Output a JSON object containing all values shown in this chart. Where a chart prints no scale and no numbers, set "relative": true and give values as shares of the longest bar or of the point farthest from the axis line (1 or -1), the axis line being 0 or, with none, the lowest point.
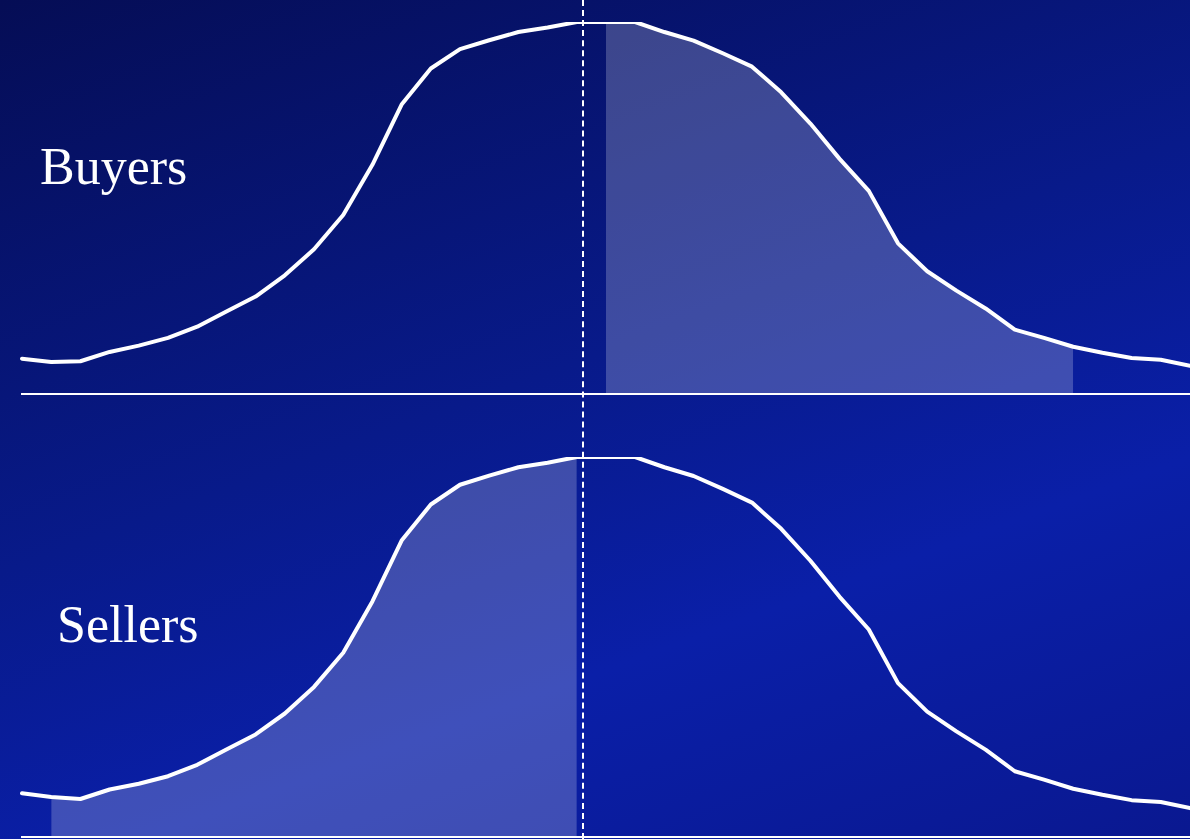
{
  "chart_data": [
    {
      "type": "line",
      "title": "Buyers",
      "relative": true,
      "tick_labels": false,
      "grid": false,
      "legend": false,
      "marker": "none",
      "line_style": "solid",
      "categories": [
        null,
        null,
        null,
        null,
        null,
        null,
        null,
        null,
        null,
        null,
        null,
        null,
        null,
        null,
        null,
        null,
        null,
        null,
        null,
        null,
        null,
        null,
        null,
        null,
        null,
        null,
        null,
        null,
        null,
        null,
        null,
        null,
        null,
        null,
        null,
        null,
        null,
        null,
        null,
        null,
        null
      ],
      "series": [
        {
          "color": "#ffffff",
          "values": [
            0.095,
            0.086,
            0.088,
            0.113,
            0.13,
            0.151,
            0.181,
            0.222,
            0.262,
            0.319,
            0.389,
            0.481,
            0.616,
            0.778,
            0.875,
            0.927,
            0.951,
            0.973,
            0.985,
            1,
            1,
            1,
            0.973,
            0.95,
            0.916,
            0.88,
            0.811,
            0.727,
            0.632,
            0.546,
            0.405,
            0.33,
            0.278,
            0.23,
            0.173,
            0.151,
            0.127,
            0.111,
            0.097,
            0.092,
            0.076
          ]
        },
        {
          "type": "area",
          "color": "#ffffff",
          "values": [
            null,
            null,
            null,
            null,
            null,
            null,
            null,
            null,
            null,
            null,
            null,
            null,
            null,
            null,
            null,
            null,
            null,
            null,
            null,
            null,
            1,
            1,
            0.973,
            0.95,
            0.916,
            0.88,
            0.811,
            0.727,
            0.632,
            0.546,
            0.405,
            0.33,
            0.278,
            0.23,
            0.173,
            0.151,
            0.127,
            null,
            null,
            null,
            null
          ]
        }
      ]
    },
    {
      "type": "line",
      "title": "Sellers",
      "relative": true,
      "tick_labels": false,
      "grid": false,
      "legend": false,
      "marker": "none",
      "line_style": "solid",
      "categories": [
        null,
        null,
        null,
        null,
        null,
        null,
        null,
        null,
        null,
        null,
        null,
        null,
        null,
        null,
        null,
        null,
        null,
        null,
        null,
        null,
        null,
        null,
        null,
        null,
        null,
        null,
        null,
        null,
        null,
        null,
        null,
        null,
        null,
        null,
        null,
        null,
        null,
        null,
        null,
        null,
        null
      ],
      "series": [
        {
          "color": "#ffffff",
          "values": [
            0.115,
            0.105,
            0.1,
            0.125,
            0.14,
            0.16,
            0.19,
            0.23,
            0.27,
            0.325,
            0.395,
            0.485,
            0.62,
            0.78,
            0.875,
            0.927,
            0.951,
            0.973,
            0.985,
            1,
            1,
            1,
            0.973,
            0.95,
            0.916,
            0.88,
            0.811,
            0.727,
            0.632,
            0.546,
            0.405,
            0.33,
            0.278,
            0.23,
            0.173,
            0.151,
            0.127,
            0.111,
            0.097,
            0.092,
            0.076
          ]
        },
        {
          "type": "area",
          "color": "#ffffff",
          "values": [
            null,
            0.105,
            0.1,
            0.125,
            0.14,
            0.16,
            0.19,
            0.23,
            0.27,
            0.325,
            0.395,
            0.485,
            0.62,
            0.78,
            0.875,
            0.927,
            0.951,
            0.973,
            0.985,
            1,
            null,
            null,
            null,
            null,
            null,
            null,
            null,
            null,
            null,
            null,
            null,
            null,
            null,
            null,
            null,
            null,
            null,
            null,
            null,
            null,
            null
          ]
        }
      ]
    }
  ]
}
